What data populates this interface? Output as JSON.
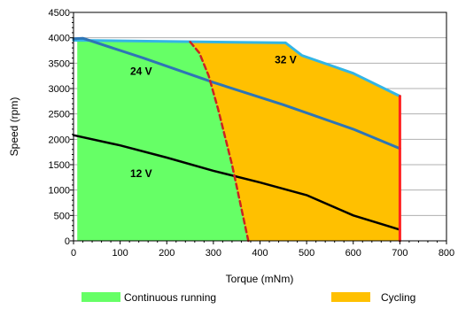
{
  "chart_data": {
    "type": "area",
    "xlabel": "Torque (mNm)",
    "ylabel": "Speed (rpm)",
    "xlim": [
      0,
      800
    ],
    "ylim": [
      0,
      4500
    ],
    "x_ticks": [
      "0",
      "100",
      "200",
      "300",
      "400",
      "500",
      "600",
      "700",
      "800"
    ],
    "y_ticks": [
      "0",
      "500",
      "1000",
      "1500",
      "2000",
      "2500",
      "3000",
      "3500",
      "4000",
      "4500"
    ],
    "grid": "horizontal",
    "legend_position": "bottom",
    "regions": [
      {
        "name": "Continuous running",
        "color": "#66ff66",
        "points": [
          [
            8,
            3960
          ],
          [
            40,
            3960
          ],
          [
            250,
            3920
          ],
          [
            270,
            3700
          ],
          [
            290,
            3250
          ],
          [
            310,
            2600
          ],
          [
            340,
            1500
          ],
          [
            375,
            0
          ],
          [
            8,
            0
          ]
        ]
      },
      {
        "name": "Cycling",
        "color": "#ffc000",
        "points": [
          [
            250,
            3920
          ],
          [
            455,
            3900
          ],
          [
            490,
            3650
          ],
          [
            600,
            3300
          ],
          [
            700,
            2850
          ],
          [
            700,
            0
          ],
          [
            375,
            0
          ],
          [
            340,
            1500
          ],
          [
            310,
            2600
          ],
          [
            290,
            3250
          ],
          [
            270,
            3700
          ]
        ]
      }
    ],
    "series": [
      {
        "name": "32 V",
        "color": "#33b5e5",
        "width": 3,
        "style": "solid",
        "x": [
          0,
          455,
          490,
          600,
          700
        ],
        "y": [
          3950,
          3900,
          3650,
          3300,
          2850
        ]
      },
      {
        "name": "24 V",
        "color": "#2e75b6",
        "width": 3,
        "style": "solid",
        "x": [
          0,
          20,
          150,
          300,
          450,
          600,
          700
        ],
        "y": [
          3980,
          3990,
          3600,
          3120,
          2680,
          2200,
          1820
        ]
      },
      {
        "name": "12 V",
        "color": "#000000",
        "width": 2.5,
        "style": "solid",
        "x": [
          0,
          100,
          200,
          300,
          400,
          500,
          600,
          700
        ],
        "y": [
          2080,
          1880,
          1640,
          1380,
          1150,
          900,
          500,
          220
        ]
      },
      {
        "name": "",
        "color": "#cc2222",
        "width": 2.5,
        "style": "dashed",
        "x": [
          250,
          270,
          290,
          310,
          340,
          375
        ],
        "y": [
          3920,
          3700,
          3250,
          2600,
          1500,
          0
        ]
      },
      {
        "name": "",
        "color": "#ff2020",
        "width": 3,
        "style": "solid",
        "x": [
          700,
          700
        ],
        "y": [
          0,
          2850
        ]
      }
    ],
    "annotations": [
      {
        "text": "24 V",
        "x": 145,
        "y": 3270
      },
      {
        "text": "32 V",
        "x": 455,
        "y": 3500
      },
      {
        "text": "12 V",
        "x": 145,
        "y": 1260
      }
    ],
    "legend": [
      {
        "label": "Continuous running",
        "color": "#66ff66"
      },
      {
        "label": "Cycling",
        "color": "#ffc000"
      }
    ]
  }
}
